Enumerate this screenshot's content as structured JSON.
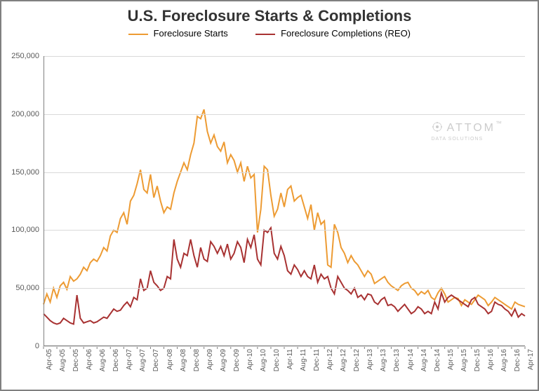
{
  "chart": {
    "type": "line",
    "title": "U.S. Foreclosure Starts & Completions",
    "title_fontsize": 22,
    "title_color": "#333333",
    "background_color": "#ffffff",
    "border_color": "#808080",
    "grid_color": "#d9d9d9",
    "axis_label_color": "#595959",
    "axis_fontsize": 11,
    "x_tick_rotation": -90,
    "ylim": [
      0,
      250000
    ],
    "ytick_step": 50000,
    "y_ticks": [
      "0",
      "50,000",
      "100,000",
      "150,000",
      "200,000",
      "250,000"
    ],
    "x_labels": [
      "Apr-05",
      "Aug-05",
      "Dec-05",
      "Apr-06",
      "Aug-06",
      "Dec-06",
      "Apr-07",
      "Aug-07",
      "Dec-07",
      "Apr-08",
      "Aug-08",
      "Dec-08",
      "Apr-09",
      "Aug-09",
      "Dec-09",
      "Apr-10",
      "Aug-10",
      "Dec-10",
      "Apr-11",
      "Aug-11",
      "Dec-11",
      "Apr-12",
      "Aug-12",
      "Dec-12",
      "Apr-13",
      "Aug-13",
      "Dec-13",
      "Apr-14",
      "Aug-14",
      "Dec-14",
      "Apr-15",
      "Aug-15",
      "Dec-15",
      "Apr-16",
      "Aug-16",
      "Dec-16",
      "Apr-17"
    ],
    "x_label_interval": 4,
    "line_width": 2,
    "legend": {
      "position": "top",
      "items": [
        {
          "label": "Foreclosure Starts",
          "color": "#ed9b33"
        },
        {
          "label": "Foreclosure Completions (REO)",
          "color": "#a83232"
        }
      ]
    },
    "watermark": {
      "text": "ATTOM",
      "subtext": "DATA SOLUTIONS",
      "color": "#cccccc"
    },
    "series": [
      {
        "name": "Foreclosure Starts",
        "color": "#ed9b33",
        "data": [
          36000,
          45000,
          38000,
          50000,
          42000,
          52000,
          55000,
          49000,
          60000,
          56000,
          58000,
          62000,
          68000,
          65000,
          72000,
          75000,
          73000,
          78000,
          85000,
          82000,
          95000,
          100000,
          98000,
          110000,
          115000,
          105000,
          125000,
          130000,
          140000,
          152000,
          135000,
          132000,
          148000,
          128000,
          138000,
          125000,
          115000,
          120000,
          118000,
          132000,
          142000,
          150000,
          158000,
          152000,
          165000,
          175000,
          198000,
          196000,
          204000,
          185000,
          175000,
          182000,
          172000,
          168000,
          176000,
          158000,
          165000,
          160000,
          150000,
          158000,
          142000,
          155000,
          145000,
          148000,
          98000,
          118000,
          155000,
          152000,
          130000,
          112000,
          118000,
          132000,
          120000,
          135000,
          138000,
          125000,
          128000,
          130000,
          120000,
          110000,
          122000,
          100000,
          115000,
          105000,
          108000,
          70000,
          68000,
          105000,
          98000,
          85000,
          80000,
          72000,
          78000,
          73000,
          70000,
          65000,
          60000,
          65000,
          62000,
          54000,
          56000,
          58000,
          60000,
          55000,
          52000,
          50000,
          48000,
          52000,
          54000,
          55000,
          50000,
          48000,
          44000,
          47000,
          45000,
          48000,
          42000,
          40000,
          46000,
          50000,
          45000,
          38000,
          40000,
          42000,
          41000,
          35000,
          40000,
          38000,
          36000,
          40000,
          44000,
          42000,
          40000,
          35000,
          38000,
          42000,
          40000,
          38000,
          36000,
          34000,
          32000,
          38000,
          36000,
          35000,
          34000
        ]
      },
      {
        "name": "Foreclosure Completions (REO)",
        "color": "#a83232",
        "data": [
          28000,
          25000,
          22000,
          20000,
          19000,
          20000,
          24000,
          22000,
          20000,
          19000,
          44000,
          24000,
          20000,
          21000,
          22000,
          20000,
          21000,
          23000,
          25000,
          24000,
          28000,
          32000,
          30000,
          31000,
          35000,
          38000,
          34000,
          42000,
          40000,
          58000,
          48000,
          50000,
          65000,
          55000,
          52000,
          48000,
          50000,
          60000,
          58000,
          92000,
          75000,
          68000,
          80000,
          78000,
          92000,
          78000,
          68000,
          85000,
          75000,
          73000,
          90000,
          86000,
          80000,
          86000,
          78000,
          88000,
          75000,
          80000,
          90000,
          85000,
          72000,
          92000,
          85000,
          96000,
          75000,
          70000,
          100000,
          98000,
          102000,
          80000,
          75000,
          86000,
          78000,
          65000,
          62000,
          70000,
          66000,
          60000,
          65000,
          60000,
          58000,
          70000,
          55000,
          62000,
          58000,
          60000,
          50000,
          45000,
          60000,
          55000,
          50000,
          48000,
          45000,
          50000,
          42000,
          44000,
          40000,
          45000,
          44000,
          38000,
          36000,
          40000,
          42000,
          35000,
          36000,
          34000,
          30000,
          33000,
          36000,
          32000,
          28000,
          30000,
          34000,
          32000,
          28000,
          30000,
          28000,
          38000,
          32000,
          46000,
          38000,
          42000,
          44000,
          42000,
          40000,
          38000,
          36000,
          34000,
          40000,
          42000,
          36000,
          34000,
          32000,
          28000,
          30000,
          38000,
          36000,
          35000,
          32000,
          30000,
          26000,
          32000,
          25000,
          28000,
          26000
        ]
      }
    ]
  }
}
